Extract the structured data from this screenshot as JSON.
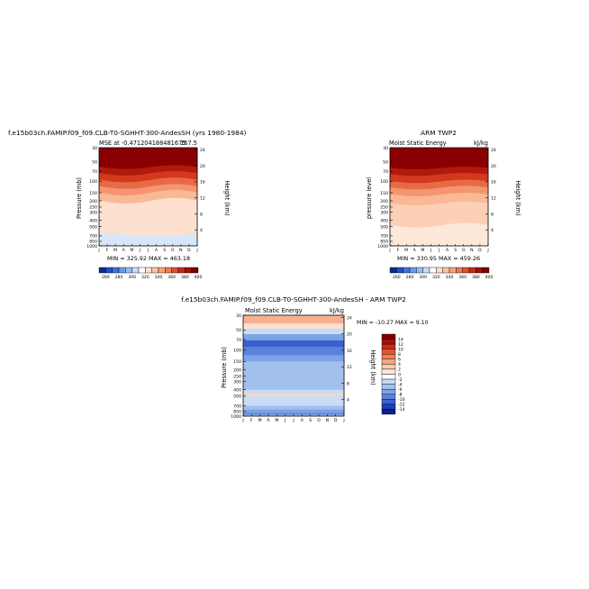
{
  "chart_data": [
    {
      "type": "heatmap",
      "title": "f.e15b03ch.FAMIP.f09_f09.CLB-T0-SGHHT-300-AndesSH (yrs 1980-1984)",
      "subtitle_left": "MSE at -0.471204188481675",
      "subtitle_right": "167.5",
      "ylabel": "Pressure (mb)",
      "ylabel_right": "Height (km)",
      "stats": "MIN = 325.92  MAX = 463.18",
      "months": [
        "J",
        "F",
        "M",
        "A",
        "M",
        "J",
        "J",
        "A",
        "S",
        "O",
        "N",
        "D",
        "J"
      ],
      "pressure_ticks": [
        "30",
        "50",
        "70",
        "100",
        "150",
        "200",
        "250",
        "300",
        "400",
        "500",
        "700",
        "850",
        "1000"
      ],
      "height_ticks": [
        "24",
        "20",
        "16",
        "12",
        "8",
        "4"
      ],
      "colorbar_labels": [
        "260",
        "280",
        "300",
        "320",
        "340",
        "360",
        "380",
        "400"
      ],
      "colorbar_colors": [
        "#0a2a8a",
        "#1f4fc4",
        "#3d73de",
        "#6a9ae8",
        "#98bcf0",
        "#c6dcf7",
        "#ffffff",
        "#fde0cf",
        "#fbc3a4",
        "#f7a17a",
        "#ef7a52",
        "#e0502f",
        "#c62a18",
        "#a01008",
        "#7a0000"
      ],
      "field": "model"
    },
    {
      "type": "heatmap",
      "title": "ARM TWP2",
      "subtitle_left": "Moist Static Energy",
      "subtitle_right": "kJ/kg",
      "ylabel": "pressure level",
      "ylabel_right": "Height (km)",
      "stats": "MIN = 330.95  MAX = 459.26",
      "months": [
        "J",
        "F",
        "M",
        "A",
        "M",
        "J",
        "J",
        "A",
        "S",
        "O",
        "N",
        "D",
        "J"
      ],
      "pressure_ticks": [
        "30",
        "50",
        "70",
        "100",
        "150",
        "200",
        "250",
        "300",
        "400",
        "500",
        "700",
        "850",
        "1000"
      ],
      "height_ticks": [
        "24",
        "20",
        "16",
        "12",
        "8",
        "4"
      ],
      "colorbar_labels": [
        "260",
        "280",
        "300",
        "320",
        "340",
        "360",
        "380",
        "400"
      ],
      "colorbar_colors": [
        "#0a2a8a",
        "#1f4fc4",
        "#3d73de",
        "#6a9ae8",
        "#98bcf0",
        "#c6dcf7",
        "#ffffff",
        "#fde0cf",
        "#fbc3a4",
        "#f7a17a",
        "#ef7a52",
        "#e0502f",
        "#c62a18",
        "#a01008",
        "#7a0000"
      ],
      "field": "obs"
    },
    {
      "type": "heatmap",
      "title": "f.e15b03ch.FAMIP.f09_f09.CLB-T0-SGHHT-300-AndesSH - ARM TWP2",
      "subtitle_left": "Moist Static Energy",
      "subtitle_right": "kJ/kg",
      "ylabel": "Pressure (mb)",
      "ylabel_right": "Height (km)",
      "stats": "MIN = -10.27  MAX =   9.10",
      "months": [
        "J",
        "F",
        "M",
        "A",
        "M",
        "J",
        "J",
        "A",
        "S",
        "O",
        "N",
        "D",
        "J"
      ],
      "pressure_ticks": [
        "30",
        "50",
        "70",
        "100",
        "150",
        "200",
        "250",
        "300",
        "400",
        "500",
        "700",
        "850",
        "1000"
      ],
      "height_ticks": [
        "24",
        "20",
        "16",
        "12",
        "8",
        "4"
      ],
      "colorbar_labels": [
        "14",
        "12",
        "10",
        "8",
        "6",
        "4",
        "2",
        "0",
        "-2",
        "-4",
        "-6",
        "-8",
        "-10",
        "-12",
        "-14"
      ],
      "colorbar_colors": [
        "#800000",
        "#a80f0a",
        "#cc2a1a",
        "#e4532f",
        "#f07f55",
        "#f6a57f",
        "#fbcaaa",
        "#fde8d8",
        "#ffffff",
        "#c8dcf6",
        "#a2c0ee",
        "#7ea2e6",
        "#5a82dc",
        "#3a60cf",
        "#1e3fb8",
        "#0a2090"
      ],
      "field": "diff"
    }
  ]
}
